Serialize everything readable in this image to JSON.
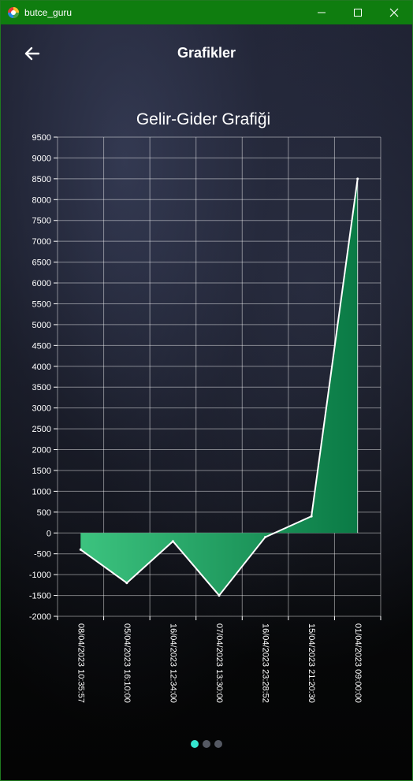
{
  "window": {
    "title": "butce_guru"
  },
  "header": {
    "title": "Grafikler"
  },
  "icons": {
    "back": "arrow-left-icon",
    "app": "app-logo-icon",
    "minimize": "minimize-icon",
    "maximize": "maximize-icon",
    "close": "close-icon"
  },
  "pager": {
    "count": 3,
    "active_index": 0
  },
  "colors": {
    "titlebar": "#0f7d0f",
    "fill_light": "#3cc37f",
    "fill_dark": "#0a7a45",
    "line": "#ffffff",
    "active_dot": "#35e6d0"
  },
  "chart_data": {
    "type": "area",
    "title": "Gelir-Gider Grafiği",
    "x": [
      "08/04/2023 10:35:57",
      "05/04/2023 16:10:00",
      "16/04/2023 12:34:00",
      "07/04/2023 13:30:00",
      "16/04/2023 23:28:52",
      "15/04/2023 21:20:30",
      "01/04/2023 09:00:00"
    ],
    "values": [
      -400,
      -1200,
      -200,
      -1500,
      -100,
      400,
      8500
    ],
    "ylim": [
      -2000,
      9500
    ],
    "ytick_step": 500,
    "grid": true,
    "xlabel": "",
    "ylabel": ""
  }
}
